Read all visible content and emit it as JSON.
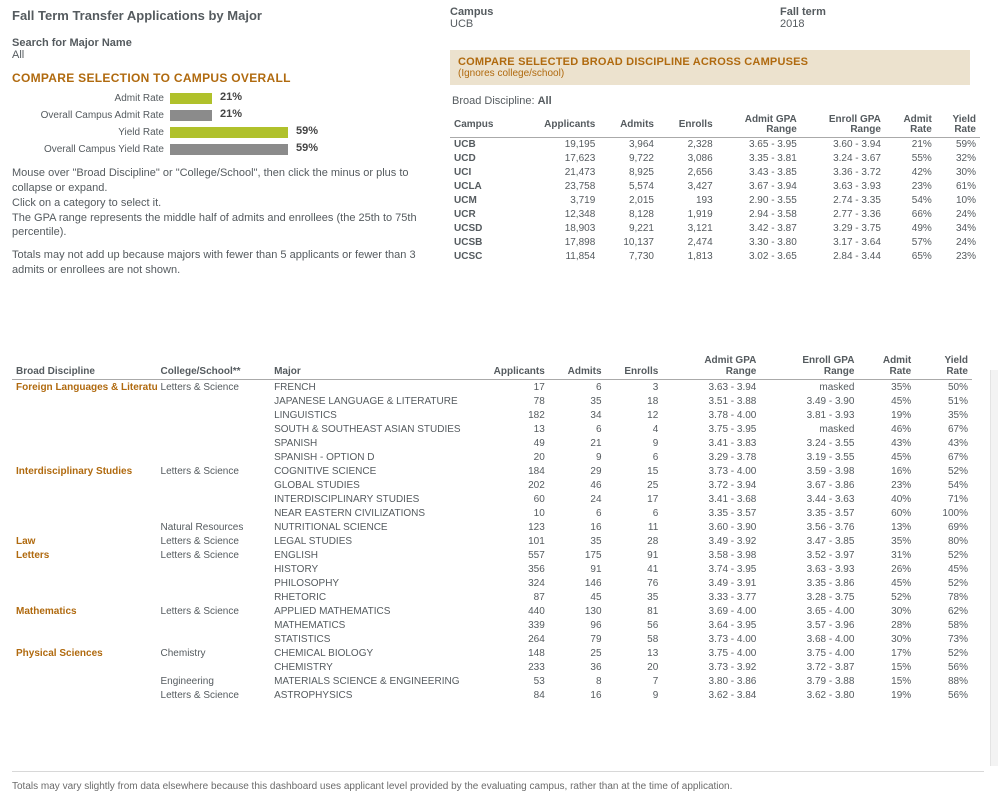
{
  "title": "Fall Term Transfer Applications by Major",
  "search": {
    "label": "Search for Major Name",
    "value": "All"
  },
  "campus": {
    "label": "Campus",
    "value": "UCB"
  },
  "term": {
    "label": "Fall term",
    "value": "2018"
  },
  "compare_header": "COMPARE SELECTION TO CAMPUS OVERALL",
  "bars": [
    {
      "label": "Admit Rate",
      "pct": 21,
      "color": "#b0c12b",
      "max": 100
    },
    {
      "label": "Overall Campus Admit Rate",
      "pct": 21,
      "color": "#8b8b8b",
      "max": 100
    },
    {
      "label": "Yield Rate",
      "pct": 59,
      "color": "#b0c12b",
      "max": 100
    },
    {
      "label": "Overall Campus Yield Rate",
      "pct": 59,
      "color": "#8b8b8b",
      "max": 100
    }
  ],
  "instructions": [
    "Mouse over \"Broad Discipline\" or \"College/School\", then click the minus or plus to collapse or expand.",
    "Click on a category to select it.",
    "The GPA range represents the middle half of admits and enrollees (the 25th to 75th percentile).",
    "",
    "Totals may not add up because majors with fewer than 5 applicants or fewer than 3 admits or enrollees are not shown."
  ],
  "compare_band": {
    "line1": "COMPARE SELECTED BROAD DISCIPLINE ACROSS CAMPUSES",
    "line2": "(Ignores college/school)"
  },
  "broad_discipline": {
    "label": "Broad Discipline:",
    "value": "All"
  },
  "campus_columns": [
    "Campus",
    "Applicants",
    "Admits",
    "Enrolls",
    "Admit GPA Range",
    "Enroll GPA Range",
    "Admit Rate",
    "Yield Rate"
  ],
  "campus_rows": [
    [
      "UCB",
      "19,195",
      "3,964",
      "2,328",
      "3.65 - 3.95",
      "3.60 - 3.94",
      "21%",
      "59%"
    ],
    [
      "UCD",
      "17,623",
      "9,722",
      "3,086",
      "3.35 - 3.81",
      "3.24 - 3.67",
      "55%",
      "32%"
    ],
    [
      "UCI",
      "21,473",
      "8,925",
      "2,656",
      "3.43 - 3.85",
      "3.36 - 3.72",
      "42%",
      "30%"
    ],
    [
      "UCLA",
      "23,758",
      "5,574",
      "3,427",
      "3.67 - 3.94",
      "3.63 - 3.93",
      "23%",
      "61%"
    ],
    [
      "UCM",
      "3,719",
      "2,015",
      "193",
      "2.90 - 3.55",
      "2.74 - 3.35",
      "54%",
      "10%"
    ],
    [
      "UCR",
      "12,348",
      "8,128",
      "1,919",
      "2.94 - 3.58",
      "2.77 - 3.36",
      "66%",
      "24%"
    ],
    [
      "UCSD",
      "18,903",
      "9,221",
      "3,121",
      "3.42 - 3.87",
      "3.29 - 3.75",
      "49%",
      "34%"
    ],
    [
      "UCSB",
      "17,898",
      "10,137",
      "2,474",
      "3.30 - 3.80",
      "3.17 - 3.64",
      "57%",
      "24%"
    ],
    [
      "UCSC",
      "11,854",
      "7,730",
      "1,813",
      "3.02 - 3.65",
      "2.84 - 3.44",
      "65%",
      "23%"
    ]
  ],
  "detail_columns": [
    "Broad Discipline",
    "College/School**",
    "Major",
    "Applicants",
    "Admits",
    "Enrolls",
    "Admit GPA Range",
    "Enroll GPA Range",
    "Admit Rate",
    "Yield Rate"
  ],
  "detail_rows": [
    {
      "d": "Foreign Languages & Literature",
      "s": "Letters & Science",
      "m": "FRENCH",
      "a": "17",
      "ad": "6",
      "e": "3",
      "ag": "3.63 - 3.94",
      "eg": "masked",
      "ar": "35%",
      "yr": "50%"
    },
    {
      "d": "",
      "s": "",
      "m": "JAPANESE LANGUAGE & LITERATURE",
      "a": "78",
      "ad": "35",
      "e": "18",
      "ag": "3.51 - 3.88",
      "eg": "3.49 - 3.90",
      "ar": "45%",
      "yr": "51%"
    },
    {
      "d": "",
      "s": "",
      "m": "LINGUISTICS",
      "a": "182",
      "ad": "34",
      "e": "12",
      "ag": "3.78 - 4.00",
      "eg": "3.81 - 3.93",
      "ar": "19%",
      "yr": "35%"
    },
    {
      "d": "",
      "s": "",
      "m": "SOUTH & SOUTHEAST ASIAN STUDIES",
      "a": "13",
      "ad": "6",
      "e": "4",
      "ag": "3.75 - 3.95",
      "eg": "masked",
      "ar": "46%",
      "yr": "67%"
    },
    {
      "d": "",
      "s": "",
      "m": "SPANISH",
      "a": "49",
      "ad": "21",
      "e": "9",
      "ag": "3.41 - 3.83",
      "eg": "3.24 - 3.55",
      "ar": "43%",
      "yr": "43%"
    },
    {
      "d": "",
      "s": "",
      "m": "SPANISH - OPTION D",
      "a": "20",
      "ad": "9",
      "e": "6",
      "ag": "3.29 - 3.78",
      "eg": "3.19 - 3.55",
      "ar": "45%",
      "yr": "67%"
    },
    {
      "d": "Interdisciplinary Studies",
      "s": "Letters & Science",
      "m": "COGNITIVE SCIENCE",
      "a": "184",
      "ad": "29",
      "e": "15",
      "ag": "3.73 - 4.00",
      "eg": "3.59 - 3.98",
      "ar": "16%",
      "yr": "52%"
    },
    {
      "d": "",
      "s": "",
      "m": "GLOBAL STUDIES",
      "a": "202",
      "ad": "46",
      "e": "25",
      "ag": "3.72 - 3.94",
      "eg": "3.67 - 3.86",
      "ar": "23%",
      "yr": "54%"
    },
    {
      "d": "",
      "s": "",
      "m": "INTERDISCIPLINARY STUDIES",
      "a": "60",
      "ad": "24",
      "e": "17",
      "ag": "3.41 - 3.68",
      "eg": "3.44 - 3.63",
      "ar": "40%",
      "yr": "71%"
    },
    {
      "d": "",
      "s": "",
      "m": "NEAR EASTERN CIVILIZATIONS",
      "a": "10",
      "ad": "6",
      "e": "6",
      "ag": "3.35 - 3.57",
      "eg": "3.35 - 3.57",
      "ar": "60%",
      "yr": "100%"
    },
    {
      "d": "",
      "s": "Natural Resources",
      "m": "NUTRITIONAL SCIENCE",
      "a": "123",
      "ad": "16",
      "e": "11",
      "ag": "3.60 - 3.90",
      "eg": "3.56 - 3.76",
      "ar": "13%",
      "yr": "69%"
    },
    {
      "d": "Law",
      "s": "Letters & Science",
      "m": "LEGAL STUDIES",
      "a": "101",
      "ad": "35",
      "e": "28",
      "ag": "3.49 - 3.92",
      "eg": "3.47 - 3.85",
      "ar": "35%",
      "yr": "80%"
    },
    {
      "d": "Letters",
      "s": "Letters & Science",
      "m": "ENGLISH",
      "a": "557",
      "ad": "175",
      "e": "91",
      "ag": "3.58 - 3.98",
      "eg": "3.52 - 3.97",
      "ar": "31%",
      "yr": "52%"
    },
    {
      "d": "",
      "s": "",
      "m": "HISTORY",
      "a": "356",
      "ad": "91",
      "e": "41",
      "ag": "3.74 - 3.95",
      "eg": "3.63 - 3.93",
      "ar": "26%",
      "yr": "45%"
    },
    {
      "d": "",
      "s": "",
      "m": "PHILOSOPHY",
      "a": "324",
      "ad": "146",
      "e": "76",
      "ag": "3.49 - 3.91",
      "eg": "3.35 - 3.86",
      "ar": "45%",
      "yr": "52%"
    },
    {
      "d": "",
      "s": "",
      "m": "RHETORIC",
      "a": "87",
      "ad": "45",
      "e": "35",
      "ag": "3.33 - 3.77",
      "eg": "3.28 - 3.75",
      "ar": "52%",
      "yr": "78%"
    },
    {
      "d": "Mathematics",
      "s": "Letters & Science",
      "m": "APPLIED MATHEMATICS",
      "a": "440",
      "ad": "130",
      "e": "81",
      "ag": "3.69 - 4.00",
      "eg": "3.65 - 4.00",
      "ar": "30%",
      "yr": "62%"
    },
    {
      "d": "",
      "s": "",
      "m": "MATHEMATICS",
      "a": "339",
      "ad": "96",
      "e": "56",
      "ag": "3.64 - 3.95",
      "eg": "3.57 - 3.96",
      "ar": "28%",
      "yr": "58%"
    },
    {
      "d": "",
      "s": "",
      "m": "STATISTICS",
      "a": "264",
      "ad": "79",
      "e": "58",
      "ag": "3.73 - 4.00",
      "eg": "3.68 - 4.00",
      "ar": "30%",
      "yr": "73%"
    },
    {
      "d": "Physical Sciences",
      "s": "Chemistry",
      "m": "CHEMICAL BIOLOGY",
      "a": "148",
      "ad": "25",
      "e": "13",
      "ag": "3.75 - 4.00",
      "eg": "3.75 - 4.00",
      "ar": "17%",
      "yr": "52%"
    },
    {
      "d": "",
      "s": "",
      "m": "CHEMISTRY",
      "a": "233",
      "ad": "36",
      "e": "20",
      "ag": "3.73 - 3.92",
      "eg": "3.72 - 3.87",
      "ar": "15%",
      "yr": "56%"
    },
    {
      "d": "",
      "s": "Engineering",
      "m": "MATERIALS SCIENCE & ENGINEERING",
      "a": "53",
      "ad": "8",
      "e": "7",
      "ag": "3.80 - 3.86",
      "eg": "3.79 - 3.88",
      "ar": "15%",
      "yr": "88%"
    },
    {
      "d": "",
      "s": "Letters & Science",
      "m": "ASTROPHYSICS",
      "a": "84",
      "ad": "16",
      "e": "9",
      "ag": "3.62 - 3.84",
      "eg": "3.62 - 3.80",
      "ar": "19%",
      "yr": "56%"
    }
  ],
  "footnote": "Totals may vary slightly from data elsewhere because this dashboard uses applicant level provided by the evaluating campus, rather than at the time of application.",
  "colors": {
    "accent_orange": "#b06a0f",
    "bar_green": "#b0c12b",
    "bar_gray": "#8b8b8b",
    "band_bg": "#ece2ce"
  }
}
